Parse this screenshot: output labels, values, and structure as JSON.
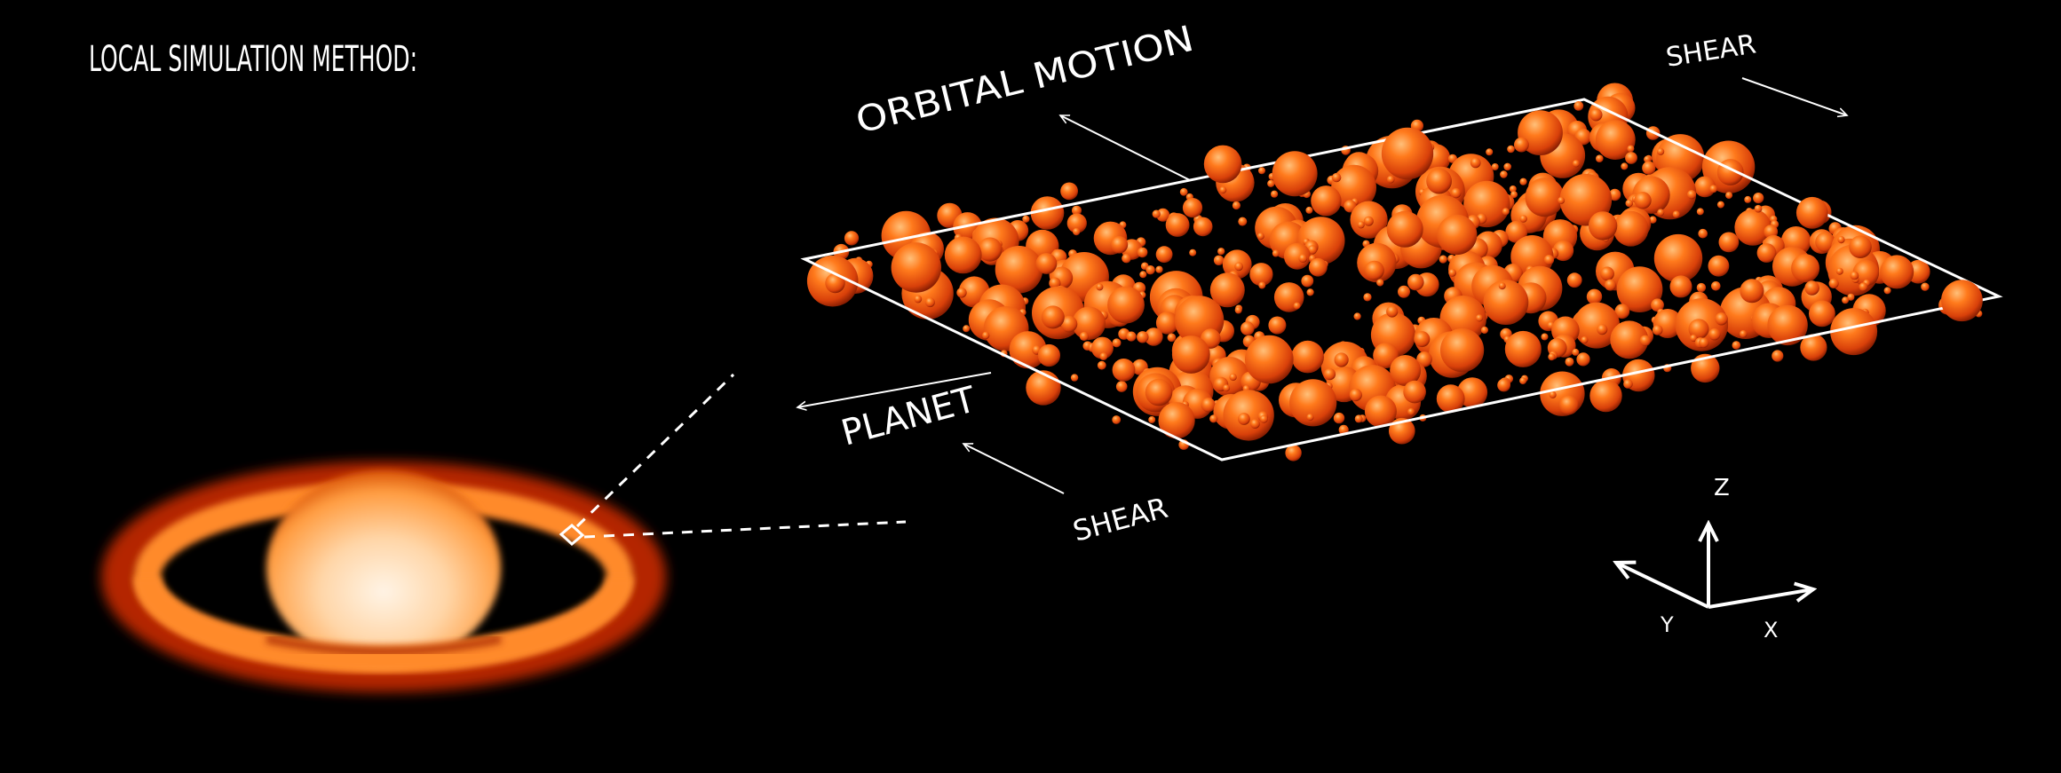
{
  "title": "LOCAL SIMULATION METHOD:",
  "labels": {
    "orbital_motion": "ORBITAL MOTION",
    "shear_top": "SHEAR",
    "planet": "PLANET",
    "shear_bottom": "SHEAR"
  },
  "axes": {
    "x": "X",
    "y": "Y",
    "z": "Z"
  },
  "colors": {
    "background": "#000000",
    "particle": "#ff6a10",
    "planet_glow": "#ff8a2a",
    "lines": "#ffffff"
  }
}
